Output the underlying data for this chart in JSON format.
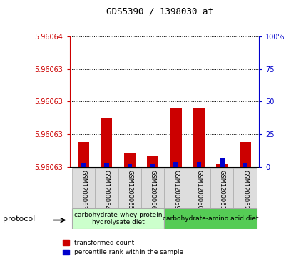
{
  "title": "GDS5390 / 1398030_at",
  "samples": [
    "GSM1200063",
    "GSM1200064",
    "GSM1200065",
    "GSM1200066",
    "GSM1200059",
    "GSM1200060",
    "GSM1200061",
    "GSM1200062"
  ],
  "red_values": [
    5.9606302,
    5.9606325,
    5.9606291,
    5.9606289,
    5.9606335,
    5.9606335,
    5.9606281,
    5.9606302
  ],
  "red_base": 5.9606278,
  "blue_percentiles": [
    3.0,
    3.5,
    2.0,
    2.0,
    4.0,
    4.0,
    7.0,
    3.0
  ],
  "ymin": 5.9606278,
  "ymax": 5.9606405,
  "yticks": [
    5.9606278,
    5.960631,
    5.9606342,
    5.9606373,
    5.9606405
  ],
  "ytick_labels": [
    "5.96063",
    "5.96063",
    "5.96063",
    "5.96063",
    "5.96064"
  ],
  "ylim_right": [
    0,
    100
  ],
  "right_ticks": [
    0,
    25,
    50,
    75,
    100
  ],
  "right_labels": [
    "0",
    "25",
    "50",
    "75",
    "100%"
  ],
  "group1_label": "carbohydrate-whey protein\nhydrolysate diet",
  "group2_label": "carbohydrate-amino acid diet",
  "group1_color": "#ccffcc",
  "group2_color": "#55cc55",
  "protocol_label": "protocol",
  "legend_red": "transformed count",
  "legend_blue": "percentile rank within the sample",
  "red_color": "#cc0000",
  "blue_color": "#0000cc",
  "left_axis_color": "#cc0000",
  "right_axis_color": "#0000cc",
  "bar_width": 0.5,
  "blue_bar_width": 0.2
}
